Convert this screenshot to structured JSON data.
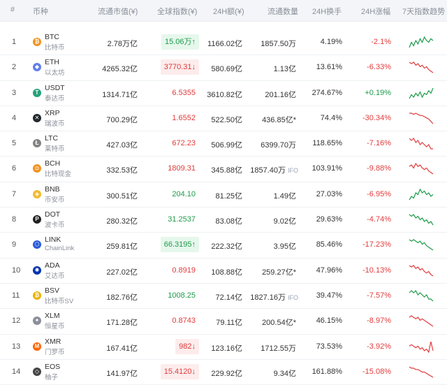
{
  "header": {
    "rank": "#",
    "coin": "币种",
    "market_cap": "流通市值(¥)",
    "global_index": "全球指数(¥)",
    "volume_24h": "24H额(¥)",
    "supply": "流通数量",
    "turnover_24h": "24H换手",
    "change_24h": "24H涨幅",
    "trend_7d": "7天指数趋势"
  },
  "colors": {
    "up": "#1e9b4a",
    "down": "#e03c3c"
  },
  "rows": [
    {
      "rank": "1",
      "symbol": "BTC",
      "name": "比特币",
      "icon": "btc-icon",
      "icon_color": "#f39321",
      "icon_glyph": "₿",
      "market_cap": "2.78万亿",
      "index": "15.06万↑",
      "index_style": "up",
      "volume": "1166.02亿",
      "supply": "1857.50万",
      "supply_tag": "",
      "turnover": "4.19%",
      "change": "-2.1%",
      "change_dir": "down",
      "trend": [
        6,
        9,
        7,
        10,
        8,
        11,
        9,
        12,
        10,
        9,
        11,
        10
      ]
    },
    {
      "rank": "2",
      "symbol": "ETH",
      "name": "以太坊",
      "icon": "eth-icon",
      "icon_color": "#627eea",
      "icon_glyph": "◆",
      "market_cap": "4265.32亿",
      "index": "3770.31↓",
      "index_style": "down",
      "volume": "580.69亿",
      "supply": "1.13亿",
      "supply_tag": "",
      "turnover": "13.61%",
      "change": "-6.33%",
      "change_dir": "down",
      "trend": [
        12,
        11,
        12,
        10,
        11,
        9,
        10,
        8,
        9,
        7,
        6,
        5
      ]
    },
    {
      "rank": "3",
      "symbol": "USDT",
      "name": "泰达币",
      "icon": "usdt-icon",
      "icon_color": "#26a17b",
      "icon_glyph": "T",
      "market_cap": "1314.71亿",
      "index": "6.5355",
      "index_style": "plaindown",
      "volume": "3610.82亿",
      "supply": "201.16亿",
      "supply_tag": "",
      "turnover": "274.67%",
      "change": "+0.19%",
      "change_dir": "up",
      "trend": [
        5,
        8,
        6,
        9,
        7,
        10,
        6,
        9,
        8,
        11,
        9,
        13
      ]
    },
    {
      "rank": "4",
      "symbol": "XRP",
      "name": "瑞波币",
      "icon": "xrp-icon",
      "icon_color": "#23292f",
      "icon_glyph": "✕",
      "market_cap": "700.29亿",
      "index": "1.6552",
      "index_style": "plaindown",
      "volume": "522.50亿",
      "supply": "436.85亿*",
      "supply_tag": "",
      "turnover": "74.4%",
      "change": "-30.34%",
      "change_dir": "down",
      "trend": [
        12,
        12,
        11,
        12,
        11,
        10,
        10,
        9,
        8,
        7,
        5,
        3
      ]
    },
    {
      "rank": "5",
      "symbol": "LTC",
      "name": "莱特币",
      "icon": "ltc-icon",
      "icon_color": "#838383",
      "icon_glyph": "Ł",
      "market_cap": "427.03亿",
      "index": "672.23",
      "index_style": "plaindown",
      "volume": "506.99亿",
      "supply": "6399.70万",
      "supply_tag": "",
      "turnover": "118.65%",
      "change": "-7.16%",
      "change_dir": "down",
      "trend": [
        11,
        10,
        11,
        9,
        10,
        8,
        9,
        8,
        7,
        8,
        6,
        6
      ]
    },
    {
      "rank": "6",
      "symbol": "BCH",
      "name": "比特现金",
      "icon": "bch-icon",
      "icon_color": "#f39321",
      "icon_glyph": "◘",
      "market_cap": "332.53亿",
      "index": "1809.31",
      "index_style": "plaindown",
      "volume": "345.88亿",
      "supply": "1857.40万",
      "supply_tag": "IFO",
      "turnover": "103.91%",
      "change": "-9.88%",
      "change_dir": "down",
      "trend": [
        10,
        11,
        9,
        12,
        10,
        11,
        9,
        8,
        9,
        7,
        6,
        5
      ]
    },
    {
      "rank": "7",
      "symbol": "BNB",
      "name": "币安币",
      "icon": "bnb-icon",
      "icon_color": "#f3ba2f",
      "icon_glyph": "◈",
      "market_cap": "300.51亿",
      "index": "204.10",
      "index_style": "plainup",
      "volume": "81.25亿",
      "supply": "1.49亿",
      "supply_tag": "",
      "turnover": "27.03%",
      "change": "-6.95%",
      "change_dir": "down",
      "trend": [
        6,
        8,
        7,
        10,
        9,
        12,
        10,
        11,
        9,
        10,
        8,
        9
      ]
    },
    {
      "rank": "8",
      "symbol": "DOT",
      "name": "波卡币",
      "icon": "dot-icon",
      "icon_color": "#222222",
      "icon_glyph": "P",
      "market_cap": "280.32亿",
      "index": "31.2537",
      "index_style": "plainup",
      "volume": "83.08亿",
      "supply": "9.02亿",
      "supply_tag": "",
      "turnover": "29.63%",
      "change": "-4.74%",
      "change_dir": "down",
      "trend": [
        11,
        10,
        11,
        9,
        10,
        8,
        9,
        7,
        8,
        6,
        7,
        5
      ]
    },
    {
      "rank": "9",
      "symbol": "LINK",
      "name": "ChainLink",
      "icon": "link-icon",
      "icon_color": "#2a5ada",
      "icon_glyph": "⬡",
      "market_cap": "259.81亿",
      "index": "66.3195↑",
      "index_style": "up",
      "volume": "222.32亿",
      "supply": "3.95亿",
      "supply_tag": "",
      "turnover": "85.46%",
      "change": "-17.23%",
      "change_dir": "down",
      "trend": [
        11,
        10,
        11,
        10,
        9,
        10,
        8,
        9,
        7,
        6,
        5,
        4
      ]
    },
    {
      "rank": "10",
      "symbol": "ADA",
      "name": "艾达币",
      "icon": "ada-icon",
      "icon_color": "#0033ad",
      "icon_glyph": "✺",
      "market_cap": "227.02亿",
      "index": "0.8919",
      "index_style": "plaindown",
      "volume": "108.88亿",
      "supply": "259.27亿*",
      "supply_tag": "",
      "turnover": "47.96%",
      "change": "-10.13%",
      "change_dir": "down",
      "trend": [
        12,
        11,
        12,
        10,
        11,
        9,
        10,
        8,
        7,
        8,
        6,
        5
      ]
    },
    {
      "rank": "11",
      "symbol": "BSV",
      "name": "比特币SV",
      "icon": "bsv-icon",
      "icon_color": "#eab300",
      "icon_glyph": "₿",
      "market_cap": "182.76亿",
      "index": "1008.25",
      "index_style": "plainup",
      "volume": "72.14亿",
      "supply": "1827.16万",
      "supply_tag": "IFO",
      "turnover": "39.47%",
      "change": "-7.57%",
      "change_dir": "down",
      "trend": [
        10,
        11,
        10,
        11,
        9,
        10,
        9,
        8,
        9,
        7,
        7,
        6
      ]
    },
    {
      "rank": "12",
      "symbol": "XLM",
      "name": "恒星币",
      "icon": "xlm-icon",
      "icon_color": "#8a8f99",
      "icon_glyph": "✦",
      "market_cap": "171.28亿",
      "index": "0.8743",
      "index_style": "plaindown",
      "volume": "79.11亿",
      "supply": "200.54亿*",
      "supply_tag": "",
      "turnover": "46.15%",
      "change": "-8.97%",
      "change_dir": "down",
      "trend": [
        11,
        12,
        11,
        10,
        11,
        9,
        10,
        9,
        8,
        7,
        6,
        5
      ]
    },
    {
      "rank": "13",
      "symbol": "XMR",
      "name": "门罗币",
      "icon": "xmr-icon",
      "icon_color": "#ff6600",
      "icon_glyph": "M",
      "market_cap": "167.41亿",
      "index": "982↓",
      "index_style": "down",
      "volume": "123.16亿",
      "supply": "1712.55万",
      "supply_tag": "",
      "turnover": "73.53%",
      "change": "-3.92%",
      "change_dir": "down",
      "trend": [
        9,
        10,
        9,
        8,
        9,
        7,
        8,
        6,
        7,
        5,
        12,
        6
      ]
    },
    {
      "rank": "14",
      "symbol": "EOS",
      "name": "柚子",
      "icon": "eos-icon",
      "icon_color": "#444444",
      "icon_glyph": "◇",
      "market_cap": "141.97亿",
      "index": "15.4120↓",
      "index_style": "down",
      "volume": "229.92亿",
      "supply": "9.34亿",
      "supply_tag": "",
      "turnover": "161.88%",
      "change": "-15.08%",
      "change_dir": "down",
      "trend": [
        12,
        11,
        11,
        10,
        10,
        9,
        8,
        8,
        7,
        6,
        5,
        4
      ]
    }
  ]
}
